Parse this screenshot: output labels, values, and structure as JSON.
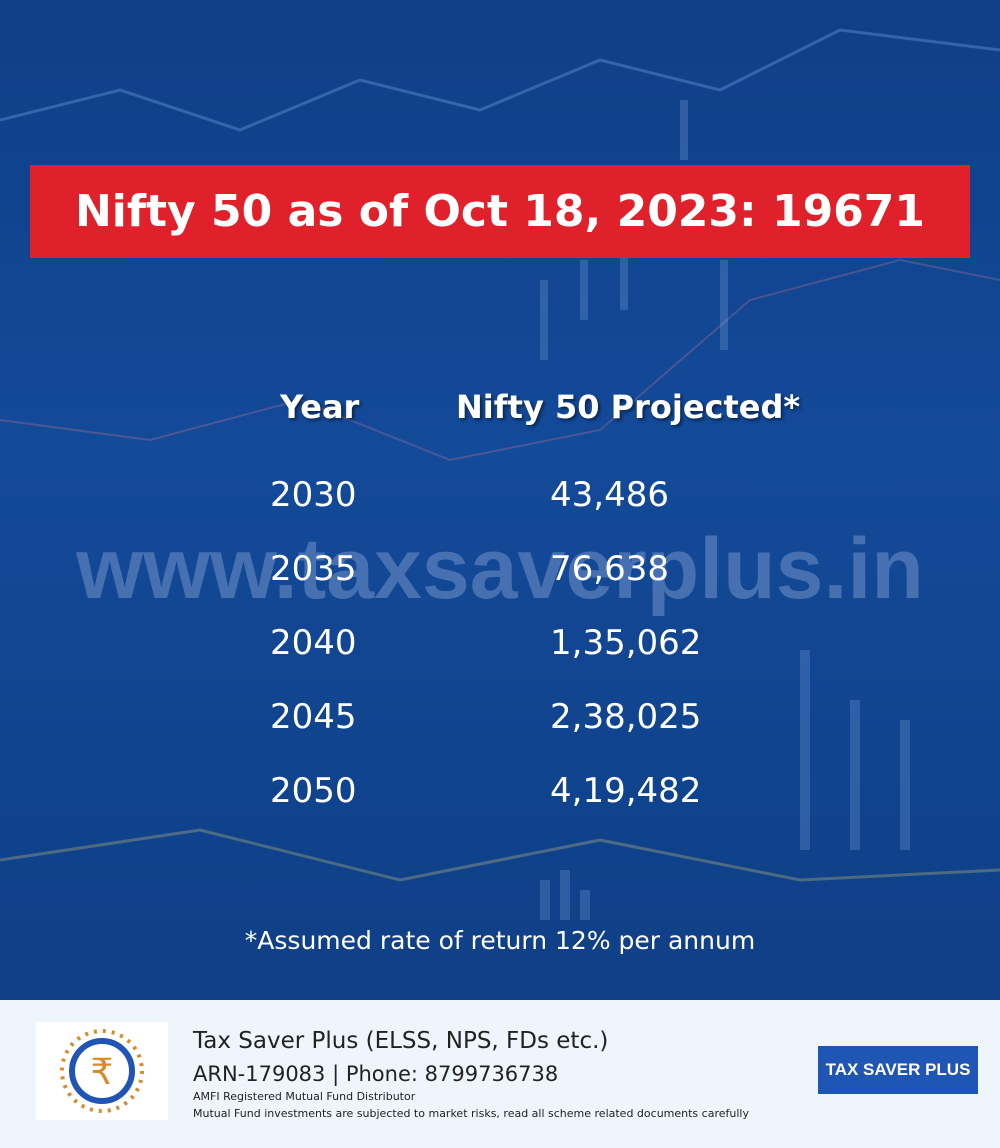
{
  "banner": {
    "title": "Nifty 50 as of Oct 18, 2023: 19671"
  },
  "table": {
    "headers": [
      "Year",
      "Nifty 50 Projected*"
    ],
    "rows": [
      [
        "2030",
        "43,486"
      ],
      [
        "2035",
        "76,638"
      ],
      [
        "2040",
        "1,35,062"
      ],
      [
        "2045",
        "2,38,025"
      ],
      [
        "2050",
        "4,19,482"
      ]
    ]
  },
  "watermark": "www.taxsaverplus.in",
  "footnote": "*Assumed rate of return 12% per annum",
  "footer": {
    "name": "Tax Saver Plus (ELSS, NPS, FDs etc.)",
    "contact": "ARN-179083 | Phone: 8799736738",
    "registration": "AMFI Registered Mutual Fund Distributor",
    "disclaimer": "Mutual Fund investments are subjected to market risks, read all scheme related documents carefully",
    "badge": "TAX SAVER PLUS"
  }
}
